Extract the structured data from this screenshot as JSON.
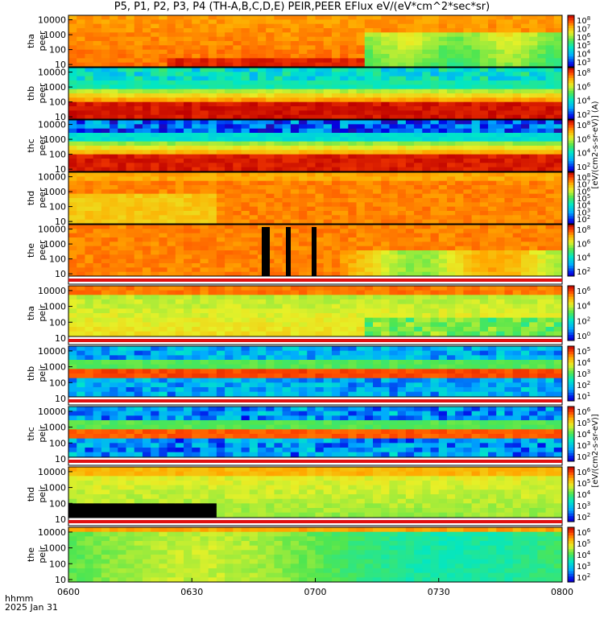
{
  "chart_data": {
    "type": "heatmap",
    "title": "P5, P1, P2, P3, P4 (TH-A,B,C,D,E) PEIR,PEER EFlux eV/(eV*cm^2*sec*sr)",
    "x_ticks": [
      "0600",
      "0630",
      "0700",
      "0730",
      "0800"
    ],
    "x_range": [
      "06:00",
      "08:00"
    ],
    "x_footer": {
      "line1": "hhmm",
      "line2": "2025 Jan 31"
    },
    "y_scale": "log",
    "y_ticks": [
      "10",
      "100",
      "1000",
      "10000"
    ],
    "colorbar_scale": "log",
    "colorbar_label_peer": "[eV/(cm2-s-sr-eV)] (A)",
    "colorbar_label_peir": "[eV/(cm2-s-sr-eV)]",
    "panels": [
      {
        "label1": "tha",
        "label2": "peer",
        "ylim": [
          7,
          20000
        ],
        "cbar_ticks": [
          "10^8",
          "10^7",
          "10^6",
          "10^5",
          "10^4",
          "10^3"
        ]
      },
      {
        "label1": "thb",
        "label2": "peer",
        "ylim": [
          7,
          20000
        ],
        "cbar_ticks": [
          "10^8",
          "10^6",
          "10^4",
          "10^2"
        ]
      },
      {
        "label1": "thc",
        "label2": "peer",
        "ylim": [
          7,
          20000
        ],
        "cbar_ticks": [
          "10^8",
          "10^6",
          "10^4",
          "10^2"
        ]
      },
      {
        "label1": "thd",
        "label2": "peer",
        "ylim": [
          7,
          20000
        ],
        "cbar_ticks": [
          "10^8",
          "10^7",
          "10^6",
          "10^5",
          "10^4",
          "10^3",
          "10^2"
        ]
      },
      {
        "label1": "the",
        "label2": "peer",
        "ylim": [
          7,
          20000
        ],
        "cbar_ticks": [
          "10^8",
          "10^6",
          "10^4",
          "10^2"
        ]
      },
      {
        "label1": "tha",
        "label2": "peir",
        "ylim": [
          7,
          20000
        ],
        "cbar_ticks": [
          "10^6",
          "10^4",
          "10^2",
          "10^0"
        ]
      },
      {
        "label1": "thb",
        "label2": "peir",
        "ylim": [
          7,
          20000
        ],
        "cbar_ticks": [
          "10^5",
          "10^4",
          "10^3",
          "10^2",
          "10^1"
        ]
      },
      {
        "label1": "thc",
        "label2": "peir",
        "ylim": [
          7,
          20000
        ],
        "cbar_ticks": [
          "10^6",
          "10^5",
          "10^4",
          "10^3",
          "10^2"
        ]
      },
      {
        "label1": "thd",
        "label2": "peir",
        "ylim": [
          7,
          20000
        ],
        "cbar_ticks": [
          "10^6",
          "10^5",
          "10^4",
          "10^3",
          "10^2"
        ]
      },
      {
        "label1": "the",
        "label2": "peir",
        "ylim": [
          7,
          20000
        ],
        "cbar_ticks": [
          "10^6",
          "10^5",
          "10^4",
          "10^3",
          "10^2"
        ]
      }
    ]
  }
}
